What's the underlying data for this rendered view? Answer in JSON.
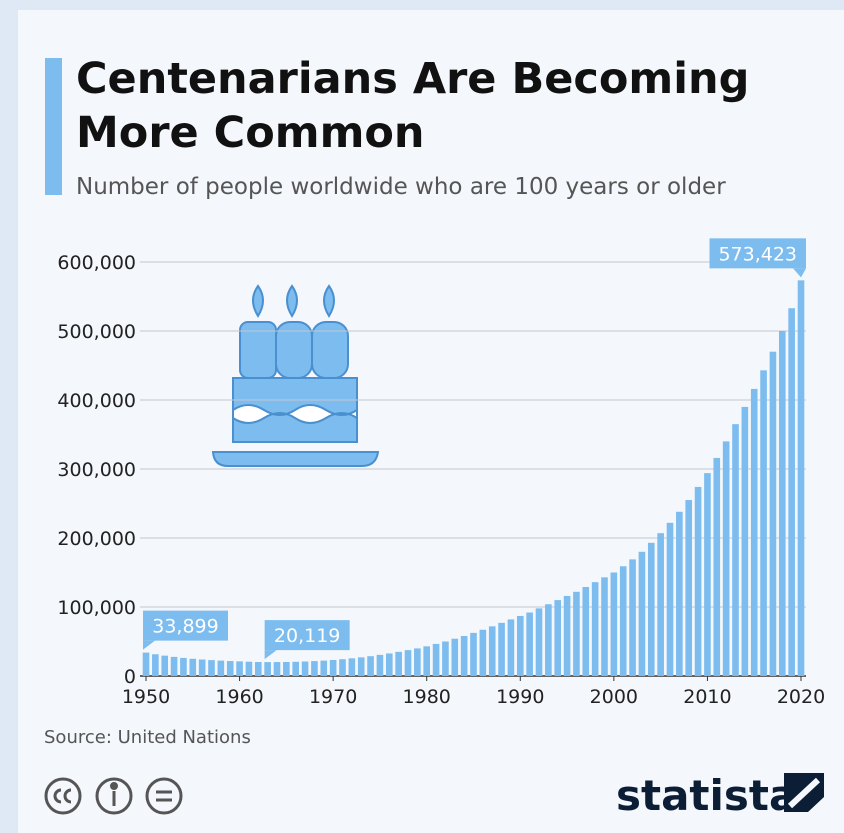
{
  "chart_data": {
    "type": "bar",
    "title": [
      "Centenarians Are Becoming",
      "More Common"
    ],
    "subtitle": "Number of people worldwide who are 100 years or older",
    "source": "Source: United Nations",
    "x": [
      1950,
      1951,
      1952,
      1953,
      1954,
      1955,
      1956,
      1957,
      1958,
      1959,
      1960,
      1961,
      1962,
      1963,
      1964,
      1965,
      1966,
      1967,
      1968,
      1969,
      1970,
      1971,
      1972,
      1973,
      1974,
      1975,
      1976,
      1977,
      1978,
      1979,
      1980,
      1981,
      1982,
      1983,
      1984,
      1985,
      1986,
      1987,
      1988,
      1989,
      1990,
      1991,
      1992,
      1993,
      1994,
      1995,
      1996,
      1997,
      1998,
      1999,
      2000,
      2001,
      2002,
      2003,
      2004,
      2005,
      2006,
      2007,
      2008,
      2009,
      2010,
      2011,
      2012,
      2013,
      2014,
      2015,
      2016,
      2017,
      2018,
      2019,
      2020
    ],
    "values": [
      33899,
      31500,
      29500,
      27700,
      26200,
      24900,
      23900,
      23000,
      22300,
      21700,
      21200,
      20700,
      20300,
      20119,
      20200,
      20300,
      20600,
      21000,
      21600,
      22300,
      23200,
      24300,
      25600,
      27000,
      28700,
      30600,
      32700,
      35000,
      37500,
      40000,
      43000,
      46500,
      50000,
      54000,
      58000,
      62500,
      67000,
      72000,
      77000,
      82000,
      87000,
      92000,
      98000,
      104000,
      110000,
      116000,
      122000,
      129000,
      136000,
      143000,
      150000,
      159000,
      169000,
      180000,
      193000,
      207000,
      222000,
      238000,
      255000,
      274000,
      294000,
      316000,
      340000,
      365000,
      390000,
      416000,
      443000,
      470000,
      500000,
      533000,
      573423
    ],
    "value_labels": [
      "33,899",
      null,
      null,
      null,
      null,
      null,
      null,
      null,
      null,
      null,
      null,
      null,
      null,
      "20,119",
      null,
      null,
      null,
      null,
      null,
      null,
      null,
      null,
      null,
      null,
      null,
      null,
      null,
      null,
      null,
      null,
      null,
      null,
      null,
      null,
      null,
      null,
      null,
      null,
      null,
      null,
      null,
      null,
      null,
      null,
      null,
      null,
      null,
      null,
      null,
      null,
      null,
      null,
      null,
      null,
      null,
      null,
      null,
      null,
      null,
      null,
      null,
      null,
      null,
      null,
      null,
      null,
      null,
      null,
      null,
      null,
      "573,423"
    ],
    "color": "#7cbcef",
    "xlim": [
      1950,
      2020
    ],
    "xticks": [
      1950,
      1960,
      1970,
      1980,
      1990,
      2000,
      2010,
      2020
    ],
    "ylim": [
      0,
      600000
    ],
    "yticks": [
      0,
      {
        "value": 100000,
        "label": "100,000"
      },
      {
        "value": 200000,
        "label": "200,000"
      },
      {
        "value": 300000,
        "label": "300,000"
      },
      {
        "value": 400000,
        "label": "400,000"
      },
      {
        "value": 500000,
        "label": "500,000"
      },
      {
        "value": 600000,
        "label": "600,000"
      }
    ],
    "grid": true
  },
  "footer": {
    "brand": "statista"
  }
}
